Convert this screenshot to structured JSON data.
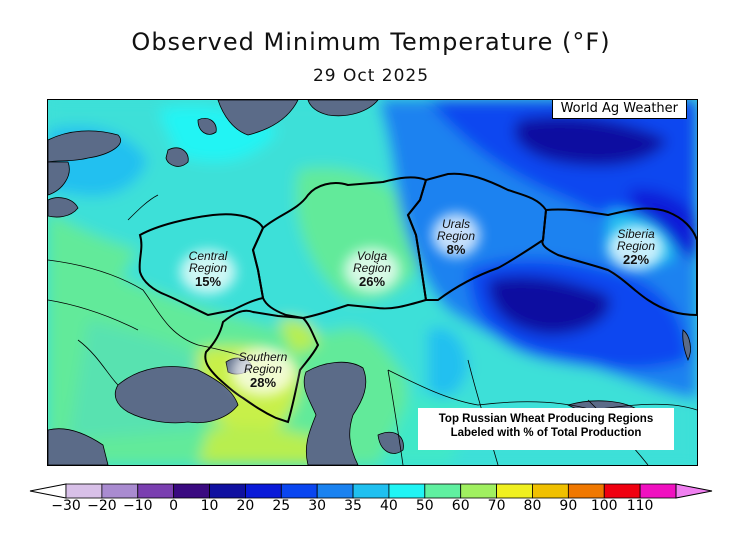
{
  "title": "Observed Minimum Temperature (°F)",
  "subtitle": "29 Oct 2025",
  "credit": "World Ag Weather",
  "note_lines": [
    "Top Russian Wheat Producing Regions",
    "Labeled with % of Total Production"
  ],
  "regions": [
    {
      "name_line1": "Central",
      "name_line2": "Region",
      "pct": "15%"
    },
    {
      "name_line1": "Volga",
      "name_line2": "Region",
      "pct": "26%"
    },
    {
      "name_line1": "Urals",
      "name_line2": "Region",
      "pct": "8%"
    },
    {
      "name_line1": "Siberia",
      "name_line2": "Region",
      "pct": "22%"
    },
    {
      "name_line1": "Southern",
      "name_line2": "Region",
      "pct": "28%"
    }
  ],
  "colorbar": {
    "ticks": [
      "-30",
      "-20",
      "-10",
      "0",
      "10",
      "20",
      "25",
      "30",
      "35",
      "40",
      "50",
      "60",
      "70",
      "80",
      "90",
      "100",
      "110"
    ],
    "colors": [
      "#d8c0e8",
      "#a98bd0",
      "#7a3fb0",
      "#3a0a80",
      "#1010a0",
      "#0a1ad8",
      "#0a46f0",
      "#1a82f0",
      "#20c0f0",
      "#20f4f4",
      "#60f0a0",
      "#a0f060",
      "#f0f020",
      "#f0c000",
      "#f07800",
      "#f00010",
      "#f010c0"
    ],
    "under_color": "#ffffff",
    "over_color": "#f080f0"
  }
}
